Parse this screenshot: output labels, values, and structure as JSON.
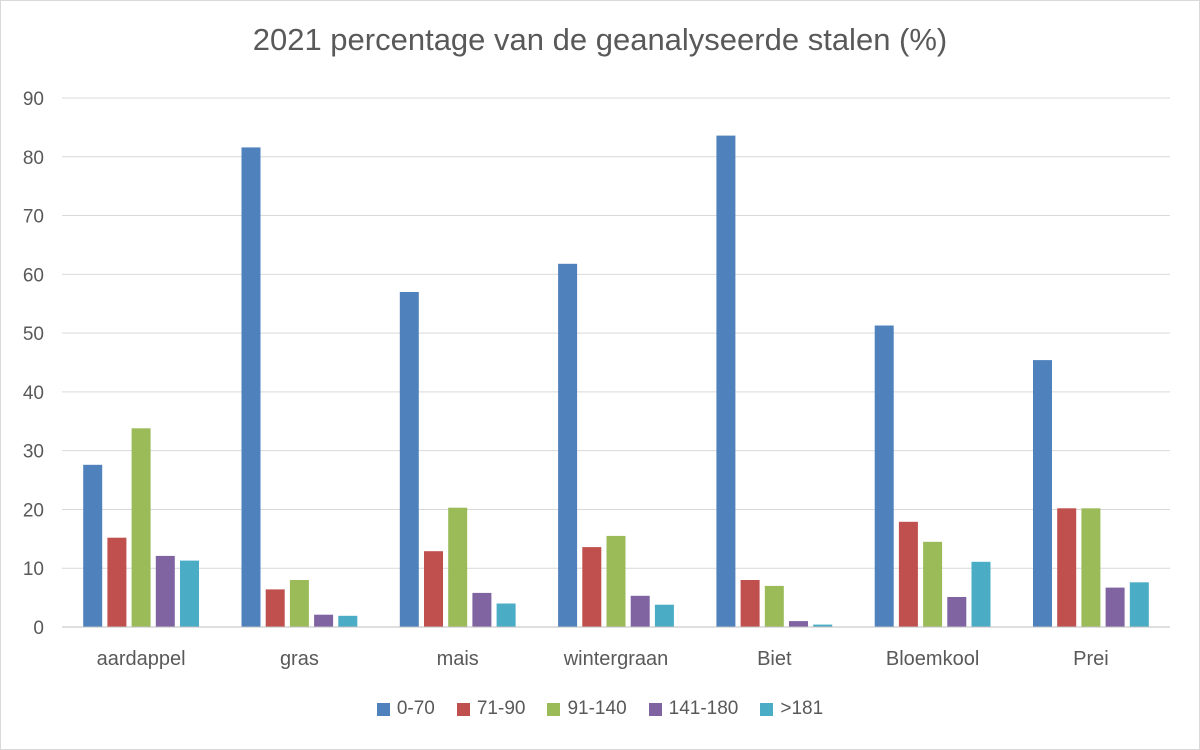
{
  "chart_data": {
    "type": "bar",
    "title": "2021 percentage van de geanalyseerde stalen (%)",
    "xlabel": "",
    "ylabel": "",
    "ylim": [
      0,
      90
    ],
    "yticks": [
      0,
      10,
      20,
      30,
      40,
      50,
      60,
      70,
      80,
      90
    ],
    "grid": true,
    "legend_position": "bottom",
    "categories": [
      "aardappel",
      "gras",
      "mais",
      "wintergraan",
      "Biet",
      "Bloemkool",
      "Prei"
    ],
    "series": [
      {
        "name": "0-70",
        "color": "#4f81bd",
        "values": [
          27.6,
          81.6,
          57.0,
          61.8,
          83.6,
          51.3,
          45.4
        ]
      },
      {
        "name": "71-90",
        "color": "#c0504d",
        "values": [
          15.2,
          6.4,
          12.9,
          13.6,
          8.0,
          17.9,
          20.2
        ]
      },
      {
        "name": "91-140",
        "color": "#9bbb59",
        "values": [
          33.8,
          8.0,
          20.3,
          15.5,
          7.0,
          14.5,
          20.2
        ]
      },
      {
        "name": "141-180",
        "color": "#8064a2",
        "values": [
          12.1,
          2.1,
          5.8,
          5.3,
          1.0,
          5.1,
          6.7
        ]
      },
      {
        "name": ">181",
        "color": "#4bacc6",
        "values": [
          11.3,
          1.9,
          4.0,
          3.8,
          0.4,
          11.1,
          7.6
        ]
      }
    ]
  }
}
